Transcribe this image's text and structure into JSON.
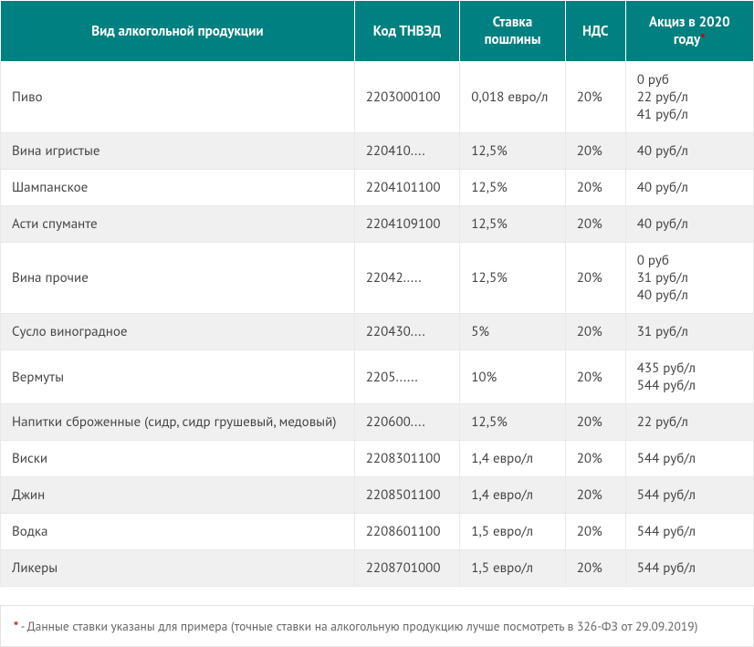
{
  "table": {
    "headers": {
      "product": "Вид алкогольной продукции",
      "code": "Код ТНВЭД",
      "rate": "Ставка пошлины",
      "vat": "НДС",
      "excise": "Акциз в 2020 году",
      "excise_asterisk": "*"
    },
    "rows": [
      {
        "product": "Пиво",
        "code": "2203000100",
        "rate": "0,018 евро/л",
        "vat": "20%",
        "excise": "0 руб\n22 руб/л\n41 руб/л",
        "stripe": false
      },
      {
        "product": "Вина игристые",
        "code": "220410....",
        "rate": "12,5%",
        "vat": "20%",
        "excise": "40 руб/л",
        "stripe": true
      },
      {
        "product": "Шампанское",
        "code": "2204101100",
        "rate": "12,5%",
        "vat": "20%",
        "excise": "40 руб/л",
        "stripe": false
      },
      {
        "product": "Асти спуманте",
        "code": "2204109100",
        "rate": "12,5%",
        "vat": "20%",
        "excise": "40 руб/л",
        "stripe": true
      },
      {
        "product": "Вина прочие",
        "code": "22042.....",
        "rate": "12,5%",
        "vat": "20%",
        "excise": "0 руб\n31 руб/л\n40 руб/л",
        "stripe": false
      },
      {
        "product": "Сусло виноградное",
        "code": "220430....",
        "rate": "5%",
        "vat": "20%",
        "excise": "31 руб/л",
        "stripe": true
      },
      {
        "product": "Вермуты",
        "code": "2205......",
        "rate": "10%",
        "vat": "20%",
        "excise": "435 руб/л\n544 руб/л",
        "stripe": false
      },
      {
        "product": "Напитки сброженные (сидр, сидр грушевый, медовый)",
        "code": "220600....",
        "rate": "12,5%",
        "vat": "20%",
        "excise": "22 руб/л",
        "stripe": true
      },
      {
        "product": "Виски",
        "code": "2208301100",
        "rate": "1,4 евро/л",
        "vat": "20%",
        "excise": "544 руб/л",
        "stripe": false
      },
      {
        "product": "Джин",
        "code": "2208501100",
        "rate": "1,4 евро/л",
        "vat": "20%",
        "excise": "544 руб/л",
        "stripe": true
      },
      {
        "product": "Водка",
        "code": "2208601100",
        "rate": "1,5 евро/л",
        "vat": "20%",
        "excise": "544 руб/л",
        "stripe": false
      },
      {
        "product": "Ликеры",
        "code": "2208701000",
        "rate": "1,5 евро/л",
        "vat": "20%",
        "excise": "544 руб/л",
        "stripe": true
      }
    ]
  },
  "footnote": {
    "asterisk": "*",
    "text": " - Данные ставки указаны для примера (точные ставки на алкогольную продукцию лучше посмотреть в 326-ФЗ от 29.09.2019)"
  },
  "colors": {
    "header_bg": "#008080",
    "header_text": "#ffffff",
    "stripe_bg": "#f0f0f0",
    "white_bg": "#ffffff",
    "border": "#e8e8e8",
    "asterisk": "#cc0000",
    "body_text": "#444444",
    "footnote_text": "#666666",
    "footnote_border": "#e4e4e4"
  }
}
